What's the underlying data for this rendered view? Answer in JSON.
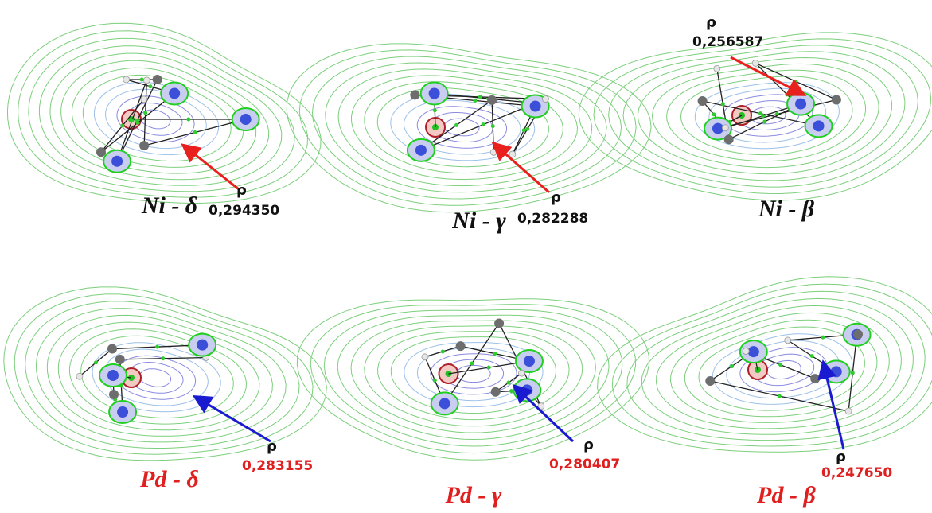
{
  "panels": [
    {
      "label": "Ni - δ",
      "rho": "ρ",
      "value": "0,294350"
    },
    {
      "label": "Ni - γ",
      "rho": "ρ",
      "value": "0,282288"
    },
    {
      "label": "Ni - β",
      "rho": "ρ",
      "value": "0,256587"
    },
    {
      "label": "Pd - δ",
      "rho": "ρ",
      "value": "0,283155"
    },
    {
      "label": "Pd - γ",
      "rho": "ρ",
      "value": "0,280407"
    },
    {
      "label": "Pd - β",
      "rho": "ρ",
      "value": "0,247650"
    }
  ]
}
